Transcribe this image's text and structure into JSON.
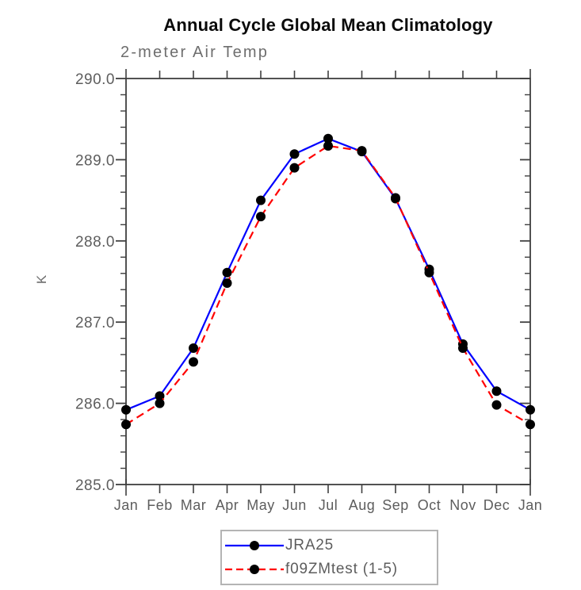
{
  "chart_data": {
    "type": "line",
    "title": "Annual Cycle Global Mean Climatology",
    "subtitle": "2-meter Air Temp",
    "xlabel": "",
    "ylabel": "K",
    "x_categories": [
      "Jan",
      "Feb",
      "Mar",
      "Apr",
      "May",
      "Jun",
      "Jul",
      "Aug",
      "Sep",
      "Oct",
      "Nov",
      "Dec",
      "Jan"
    ],
    "ylim": [
      285.0,
      290.0
    ],
    "ytick_interval": 1.0,
    "ytick_minor_interval": 0.2,
    "ytick_labels": [
      "285.0",
      "286.0",
      "287.0",
      "288.0",
      "289.0",
      "290.0"
    ],
    "grid": false,
    "legend_position": "bottom-center",
    "series": [
      {
        "name": "JRA25",
        "color": "#0000ff",
        "line_style": "solid",
        "marker": "circle",
        "marker_color": "#000000",
        "values": [
          285.92,
          286.09,
          286.68,
          287.61,
          288.5,
          289.07,
          289.26,
          289.1,
          288.52,
          287.65,
          286.73,
          286.15,
          285.92
        ]
      },
      {
        "name": "f09ZMtest (1-5)",
        "color": "#ff0000",
        "line_style": "dashed",
        "marker": "circle",
        "marker_color": "#000000",
        "values": [
          285.74,
          286.0,
          286.51,
          287.48,
          288.3,
          288.9,
          289.17,
          289.11,
          288.53,
          287.61,
          286.68,
          285.98,
          285.74
        ]
      }
    ]
  }
}
